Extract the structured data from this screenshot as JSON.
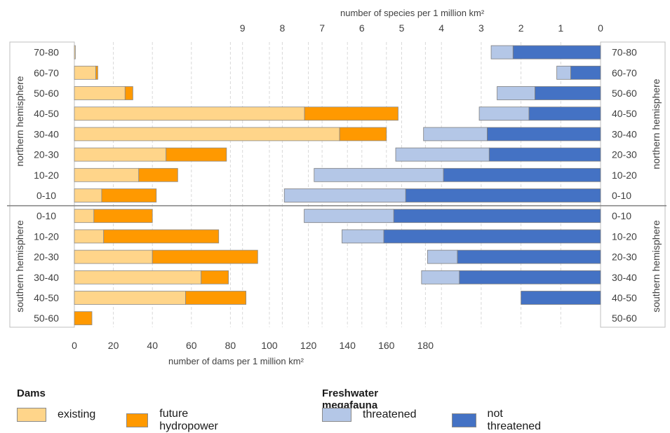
{
  "chart_data": {
    "type": "bar",
    "categories": [
      "70-80",
      "60-70",
      "50-60",
      "40-50",
      "30-40",
      "20-30",
      "10-20",
      "0-10",
      "0-10",
      "10-20",
      "20-30",
      "30-40",
      "40-50",
      "50-60"
    ],
    "groups": [
      {
        "name": "northern hemisphere",
        "categories": [
          "70-80",
          "60-70",
          "50-60",
          "40-50",
          "30-40",
          "20-30",
          "10-20",
          "0-10"
        ]
      },
      {
        "name": "southern hemisphere",
        "categories": [
          "0-10",
          "10-20",
          "20-30",
          "30-40",
          "40-50",
          "50-60"
        ]
      }
    ],
    "panels": [
      {
        "panel": "dams",
        "xlabel": "number of dams per 1 million km²",
        "xticks": [
          0,
          20,
          40,
          60,
          80,
          100,
          120,
          140,
          160,
          180
        ],
        "xlim": [
          0,
          180
        ],
        "stacked": true,
        "series": [
          {
            "name": "existing",
            "color": "#FFD58A",
            "values": [
              0.5,
              11,
              26,
              118,
              136,
              47,
              33,
              14,
              10,
              15,
              40,
              65,
              57,
              0
            ]
          },
          {
            "name": "future hydropower",
            "color": "#FF9900",
            "values": [
              0,
              1,
              4,
              48,
              24,
              31,
              20,
              28,
              30,
              59,
              54,
              14,
              31,
              9
            ]
          }
        ]
      },
      {
        "panel": "freshwater megafauna",
        "xlabel": "number of species per 1 million km²",
        "xticks": [
          9,
          8,
          7,
          6,
          5,
          4,
          3,
          2,
          1,
          0
        ],
        "xlim": [
          0,
          9.5
        ],
        "reversed": true,
        "stacked": true,
        "series": [
          {
            "name": "not threatened",
            "color": "#4472C4",
            "values": [
              2.2,
              0.75,
              1.65,
              1.8,
              2.85,
              2.8,
              3.95,
              4.9,
              5.2,
              5.45,
              3.6,
              3.55,
              2.0,
              0
            ]
          },
          {
            "name": "threatened",
            "color": "#B4C7E7",
            "values": [
              0.55,
              0.35,
              0.95,
              1.25,
              1.6,
              2.35,
              3.25,
              3.05,
              2.25,
              1.05,
              0.75,
              0.95,
              0,
              0
            ]
          }
        ]
      }
    ],
    "grid": true
  },
  "legend": {
    "dams_title": "Dams",
    "megafauna_title": "Freshwater megafauna",
    "existing": "existing",
    "future": "future hydropower",
    "threatened": "threatened",
    "not_threatened": "not threatened"
  }
}
